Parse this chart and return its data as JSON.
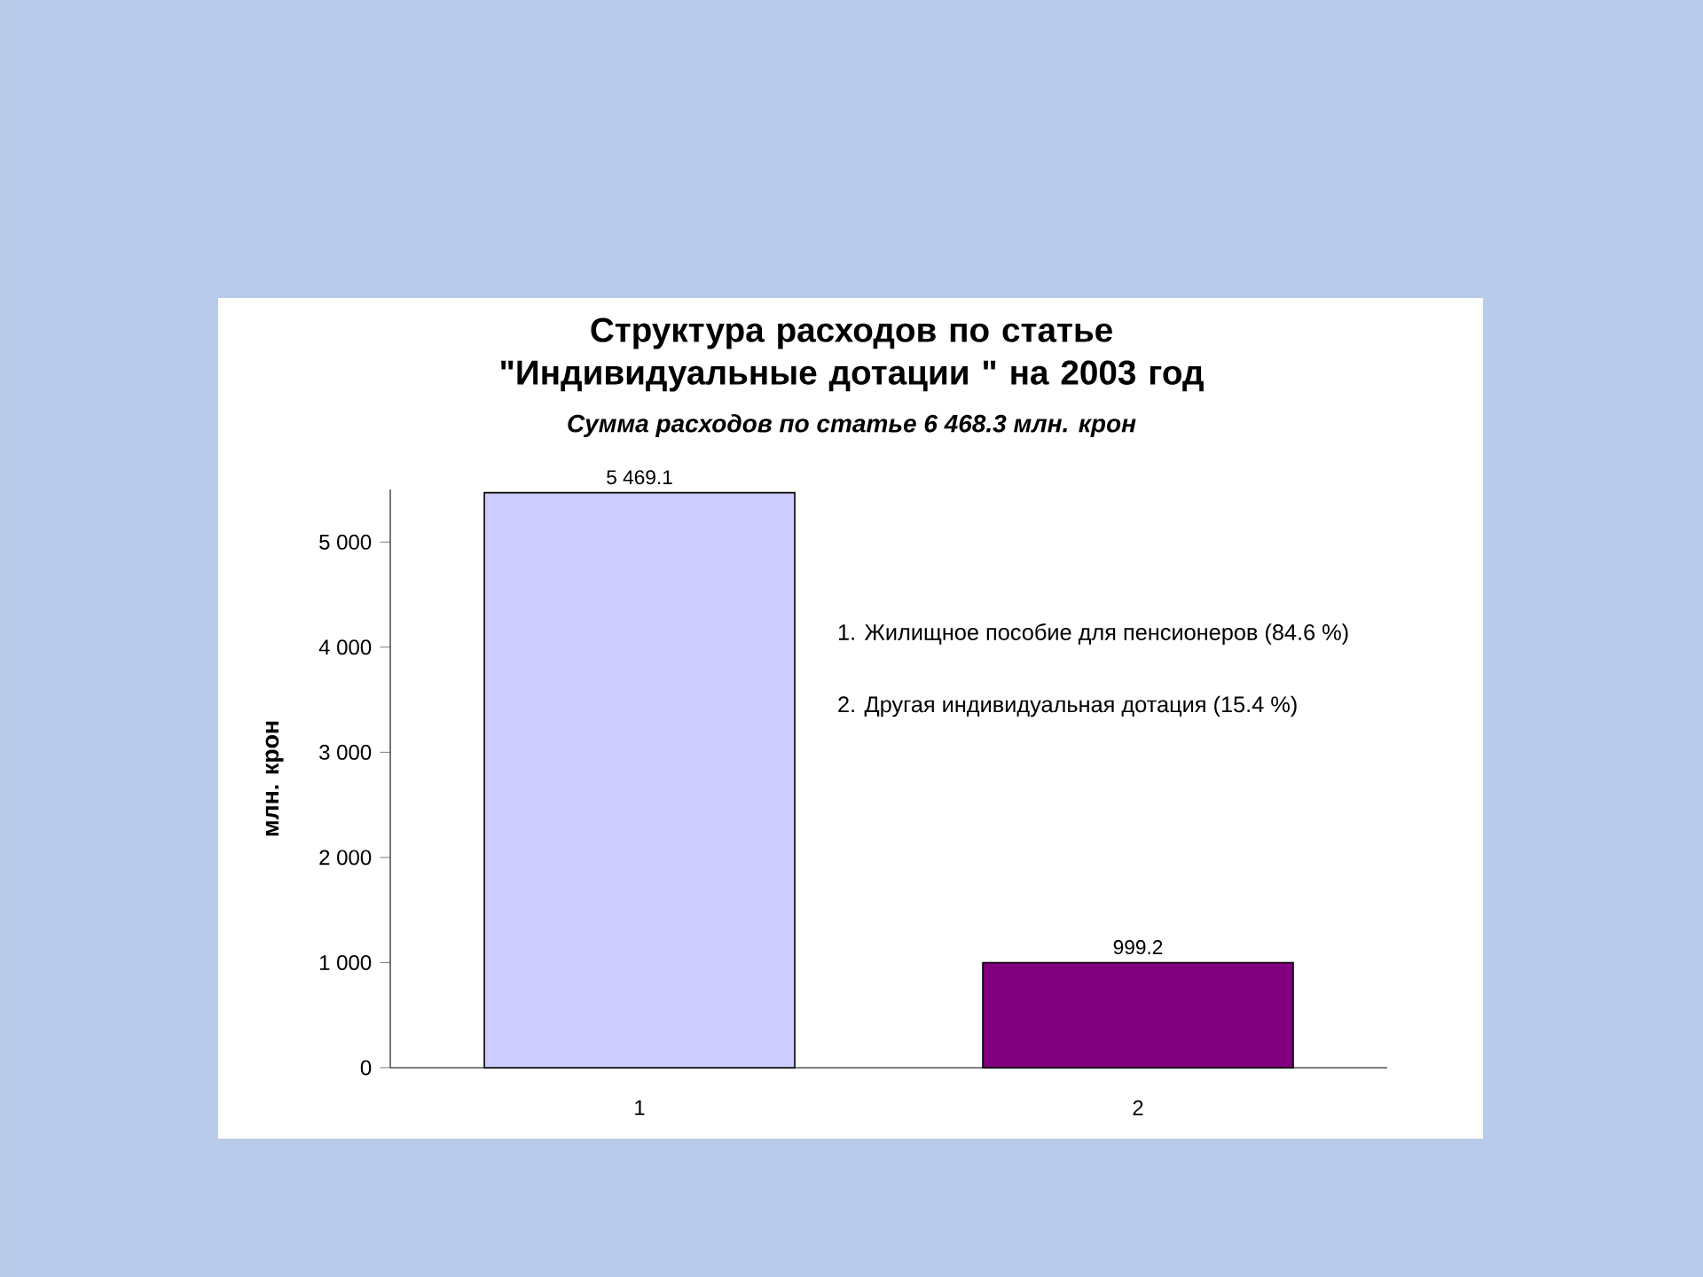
{
  "chart_data": {
    "type": "bar",
    "title": "Структура расходов по статье \"Индивидуальные дотации \" на 2003 год",
    "subtitle": "Сумма расходов по статье 6 468.3  млн. крон",
    "ylabel": "млн. крон",
    "categories": [
      "1",
      "2"
    ],
    "values": [
      5469.1,
      999.2
    ],
    "colors": [
      "#ccccff",
      "#800080"
    ],
    "value_labels": [
      "5 469.1",
      "999.2"
    ],
    "ylim": [
      0,
      5500
    ],
    "yticks": [
      0,
      {
        "value": 1000,
        "label": "1 000"
      },
      {
        "value": 2000,
        "label": "2 000"
      },
      {
        "value": 3000,
        "label": "3 000"
      },
      {
        "value": 4000,
        "label": "4 000"
      },
      {
        "value": 5000,
        "label": "5 000"
      }
    ],
    "annotations": [
      "1. Жилищное пособие для пенсионеров (84.6 %)",
      "2. Другая индивидуальная дотация (15.4  %)"
    ],
    "grid": false
  }
}
